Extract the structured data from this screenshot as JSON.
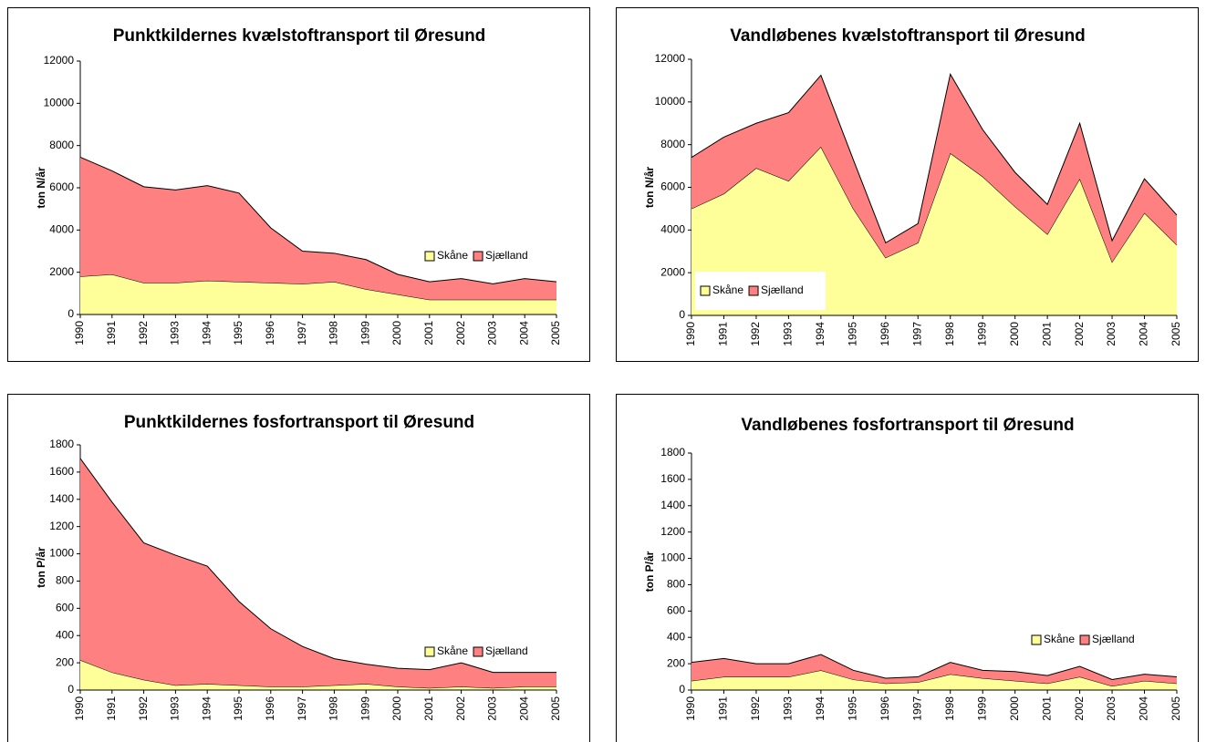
{
  "chart_data": [
    {
      "type": "stacked-area",
      "title": "Punktkildernes kvælstoftransport til Øresund",
      "y_label": "ton N/år",
      "categories": [
        "1990",
        "1991",
        "1992",
        "1993",
        "1994",
        "1995",
        "1996",
        "1997",
        "1998",
        "1999",
        "2000",
        "2001",
        "2002",
        "2003",
        "2004",
        "2005"
      ],
      "series": [
        {
          "name": "Skåne",
          "color": "#ffff99",
          "values": [
            1800,
            1900,
            1500,
            1500,
            1600,
            1550,
            1500,
            1450,
            1550,
            1200,
            950,
            700,
            700,
            700,
            700,
            700
          ]
        },
        {
          "name": "Sjælland",
          "color": "#ff8080",
          "values": [
            5650,
            4900,
            4550,
            4400,
            4500,
            4200,
            2600,
            1550,
            1350,
            1400,
            950,
            850,
            1000,
            750,
            1000,
            850
          ]
        }
      ],
      "ylim": [
        0,
        12000
      ],
      "yticks": [
        0,
        2000,
        4000,
        6000,
        8000,
        10000,
        12000
      ],
      "legend": "right"
    },
    {
      "type": "stacked-area",
      "title": "Vandløbenes kvælstoftransport til Øresund",
      "y_label": "ton N/år",
      "categories": [
        "1990",
        "1991",
        "1992",
        "1993",
        "1994",
        "1995",
        "1996",
        "1997",
        "1998",
        "1999",
        "2000",
        "2001",
        "2002",
        "2003",
        "2004",
        "2005"
      ],
      "series": [
        {
          "name": "Skåne",
          "color": "#ffff99",
          "values": [
            5000,
            5700,
            6900,
            6300,
            7900,
            5000,
            2700,
            3400,
            7600,
            6500,
            5100,
            3800,
            6400,
            2500,
            4800,
            3300
          ]
        },
        {
          "name": "Sjælland",
          "color": "#ff8080",
          "values": [
            2400,
            2650,
            2100,
            3200,
            3350,
            2300,
            700,
            900,
            3700,
            2200,
            1600,
            1400,
            2600,
            1000,
            1600,
            1400
          ]
        }
      ],
      "ylim": [
        0,
        12000
      ],
      "yticks": [
        0,
        2000,
        4000,
        6000,
        8000,
        10000,
        12000
      ],
      "legend": "lower left"
    },
    {
      "type": "stacked-area",
      "title": "Punktkildernes fosfortransport til Øresund",
      "y_label": "ton P/år",
      "categories": [
        "1990",
        "1991",
        "1992",
        "1993",
        "1994",
        "1995",
        "1996",
        "1997",
        "1998",
        "1999",
        "2000",
        "2001",
        "2002",
        "2003",
        "2004",
        "2005"
      ],
      "series": [
        {
          "name": "Skåne",
          "color": "#ffff99",
          "values": [
            220,
            130,
            75,
            35,
            45,
            35,
            25,
            25,
            35,
            45,
            25,
            15,
            25,
            15,
            25,
            25
          ]
        },
        {
          "name": "Sjælland",
          "color": "#ff8080",
          "values": [
            1480,
            1250,
            1005,
            955,
            865,
            615,
            425,
            295,
            195,
            145,
            135,
            135,
            175,
            115,
            105,
            105
          ]
        }
      ],
      "ylim": [
        0,
        1800
      ],
      "yticks": [
        0,
        200,
        400,
        600,
        800,
        1000,
        1200,
        1400,
        1600,
        1800
      ],
      "legend": "right"
    },
    {
      "type": "stacked-area",
      "title": "Vandløbenes fosfortransport til Øresund",
      "y_label": "ton P/år",
      "categories": [
        "1990",
        "1991",
        "1992",
        "1993",
        "1994",
        "1995",
        "1996",
        "1997",
        "1998",
        "1999",
        "2000",
        "2001",
        "2002",
        "2003",
        "2004",
        "2005"
      ],
      "series": [
        {
          "name": "Skåne",
          "color": "#ffff99",
          "values": [
            70,
            100,
            100,
            100,
            150,
            80,
            50,
            60,
            120,
            90,
            70,
            50,
            100,
            30,
            70,
            50
          ]
        },
        {
          "name": "Sjælland",
          "color": "#ff8080",
          "values": [
            140,
            140,
            100,
            100,
            120,
            70,
            40,
            40,
            90,
            60,
            70,
            60,
            80,
            50,
            50,
            50
          ]
        }
      ],
      "ylim": [
        0,
        1800
      ],
      "yticks": [
        0,
        200,
        400,
        600,
        800,
        1000,
        1200,
        1400,
        1600,
        1800
      ],
      "legend": "right"
    }
  ]
}
